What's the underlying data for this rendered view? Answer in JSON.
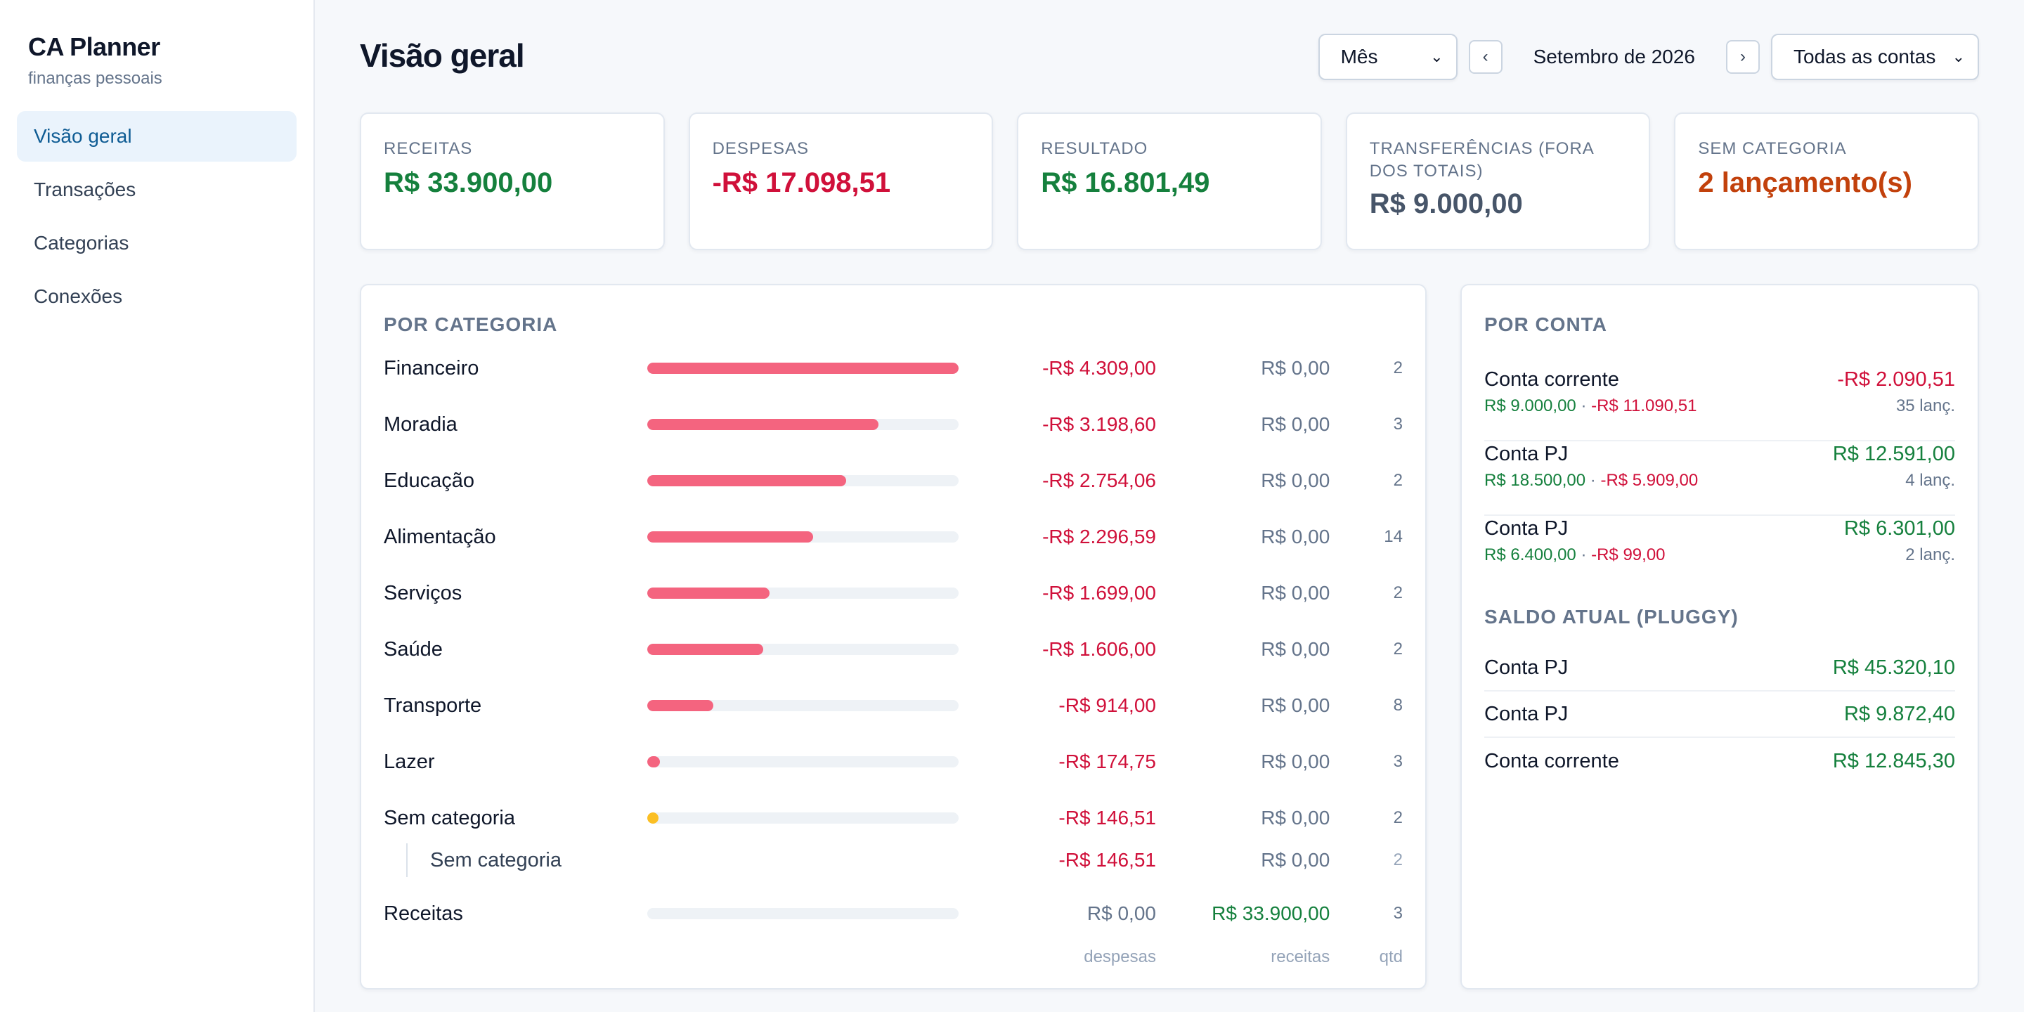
{
  "app": {
    "name": "CA Planner",
    "subtitle": "finanças pessoais"
  },
  "sidebar": {
    "items": [
      {
        "label": "Visão geral",
        "active": true
      },
      {
        "label": "Transações",
        "active": false
      },
      {
        "label": "Categorias",
        "active": false
      },
      {
        "label": "Conexões",
        "active": false
      }
    ]
  },
  "header": {
    "title": "Visão geral",
    "period_select": "Mês",
    "prev_icon": "‹",
    "next_icon": "›",
    "period_label": "Setembro de 2026",
    "accounts_select": "Todas as contas"
  },
  "cards": [
    {
      "label": "RECEITAS",
      "value": "R$ 33.900,00",
      "tone": "green"
    },
    {
      "label": "DESPESAS",
      "value": "-R$ 17.098,51",
      "tone": "red"
    },
    {
      "label": "RESULTADO",
      "value": "R$ 16.801,49",
      "tone": "green"
    },
    {
      "label": "TRANSFERÊNCIAS (FORA DOS TOTAIS)",
      "value": "R$ 9.000,00",
      "tone": "slate"
    },
    {
      "label": "SEM CATEGORIA",
      "value": "2 lançamento(s)",
      "tone": "orange"
    }
  ],
  "by_category": {
    "title": "POR CATEGORIA",
    "rows": [
      {
        "name": "Financeiro",
        "fill": 1.0,
        "color": "#f4647f",
        "expense": "-R$ 4.309,00",
        "income": "R$ 0,00",
        "qty": "2"
      },
      {
        "name": "Moradia",
        "fill": 0.742,
        "color": "#f4647f",
        "expense": "-R$ 3.198,60",
        "income": "R$ 0,00",
        "qty": "3"
      },
      {
        "name": "Educação",
        "fill": 0.639,
        "color": "#f4647f",
        "expense": "-R$ 2.754,06",
        "income": "R$ 0,00",
        "qty": "2"
      },
      {
        "name": "Alimentação",
        "fill": 0.533,
        "color": "#f4647f",
        "expense": "-R$ 2.296,59",
        "income": "R$ 0,00",
        "qty": "14"
      },
      {
        "name": "Serviços",
        "fill": 0.394,
        "color": "#f4647f",
        "expense": "-R$ 1.699,00",
        "income": "R$ 0,00",
        "qty": "2"
      },
      {
        "name": "Saúde",
        "fill": 0.373,
        "color": "#f4647f",
        "expense": "-R$ 1.606,00",
        "income": "R$ 0,00",
        "qty": "2"
      },
      {
        "name": "Transporte",
        "fill": 0.212,
        "color": "#f4647f",
        "expense": "-R$ 914,00",
        "income": "R$ 0,00",
        "qty": "8"
      },
      {
        "name": "Lazer",
        "fill": 0.041,
        "color": "#f4647f",
        "expense": "-R$ 174,75",
        "income": "R$ 0,00",
        "qty": "3"
      },
      {
        "name": "Sem categoria",
        "fill": 0.034,
        "color": "#fbbf24",
        "expense": "-R$ 146,51",
        "income": "R$ 0,00",
        "qty": "2"
      }
    ],
    "sub_row": {
      "name": "Sem categoria",
      "expense": "-R$ 146,51",
      "income": "R$ 0,00",
      "qty": "2"
    },
    "income_row": {
      "name": "Receitas",
      "fill": 0,
      "expense": "R$ 0,00",
      "income": "R$ 33.900,00",
      "qty": "3"
    },
    "footer": {
      "expense": "despesas",
      "income": "receitas",
      "qty": "qtd"
    }
  },
  "by_account": {
    "title": "POR CONTA",
    "items": [
      {
        "name": "Conta corrente",
        "total": "-R$ 2.090,51",
        "total_tone": "red",
        "in": "R$ 9.000,00",
        "sep": " · ",
        "out": "-R$ 11.090,51",
        "count": "35 lanç."
      },
      {
        "name": "Conta PJ",
        "total": "R$ 12.591,00",
        "total_tone": "green",
        "in": "R$ 18.500,00",
        "sep": " · ",
        "out": "-R$ 5.909,00",
        "count": "4 lanç."
      },
      {
        "name": "Conta PJ",
        "total": "R$ 6.301,00",
        "total_tone": "green",
        "in": "R$ 6.400,00",
        "sep": " · ",
        "out": "-R$ 99,00",
        "count": "2 lanç."
      }
    ]
  },
  "balance": {
    "title": "SALDO ATUAL (PLUGGY)",
    "items": [
      {
        "name": "Conta PJ",
        "value": "R$ 45.320,10"
      },
      {
        "name": "Conta PJ",
        "value": "R$ 9.872,40"
      },
      {
        "name": "Conta corrente",
        "value": "R$ 12.845,30"
      }
    ]
  }
}
